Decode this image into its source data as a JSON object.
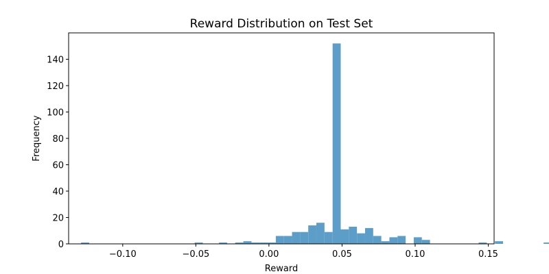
{
  "chart_data": {
    "type": "bar",
    "title": "Reward Distribution on Test Set",
    "xlabel": "Reward",
    "ylabel": "Frequency",
    "xlim": [
      -0.137,
      0.154
    ],
    "ylim": [
      0,
      160
    ],
    "xticks": [
      -0.1,
      -0.05,
      0.0,
      0.05,
      0.1,
      0.15
    ],
    "xtick_labels": [
      "−0.10",
      "−0.05",
      "0.00",
      "0.05",
      "0.10",
      "0.15"
    ],
    "yticks": [
      0,
      20,
      40,
      60,
      80,
      100,
      120,
      140
    ],
    "ytick_labels": [
      "0",
      "20",
      "40",
      "60",
      "80",
      "100",
      "120",
      "140"
    ],
    "bin_start": -0.1285,
    "bin_width": 0.00555,
    "counts": [
      1,
      0,
      0,
      0,
      0,
      0,
      0,
      0,
      0,
      0,
      0,
      0,
      0,
      0,
      1,
      0,
      0,
      1,
      0,
      1,
      2,
      1,
      1,
      1,
      6,
      6,
      9,
      9,
      14,
      16,
      9,
      152,
      11,
      13,
      8,
      12,
      6,
      2,
      5,
      6,
      0,
      5,
      3,
      0,
      0,
      0,
      0,
      0,
      0,
      1,
      0,
      2,
      0,
      0,
      0,
      0,
      0,
      1,
      0,
      0,
      0,
      0,
      0,
      0,
      0,
      0,
      0,
      1
    ],
    "bar_color": "#5d9ec9",
    "grid": false,
    "legend": "none"
  }
}
